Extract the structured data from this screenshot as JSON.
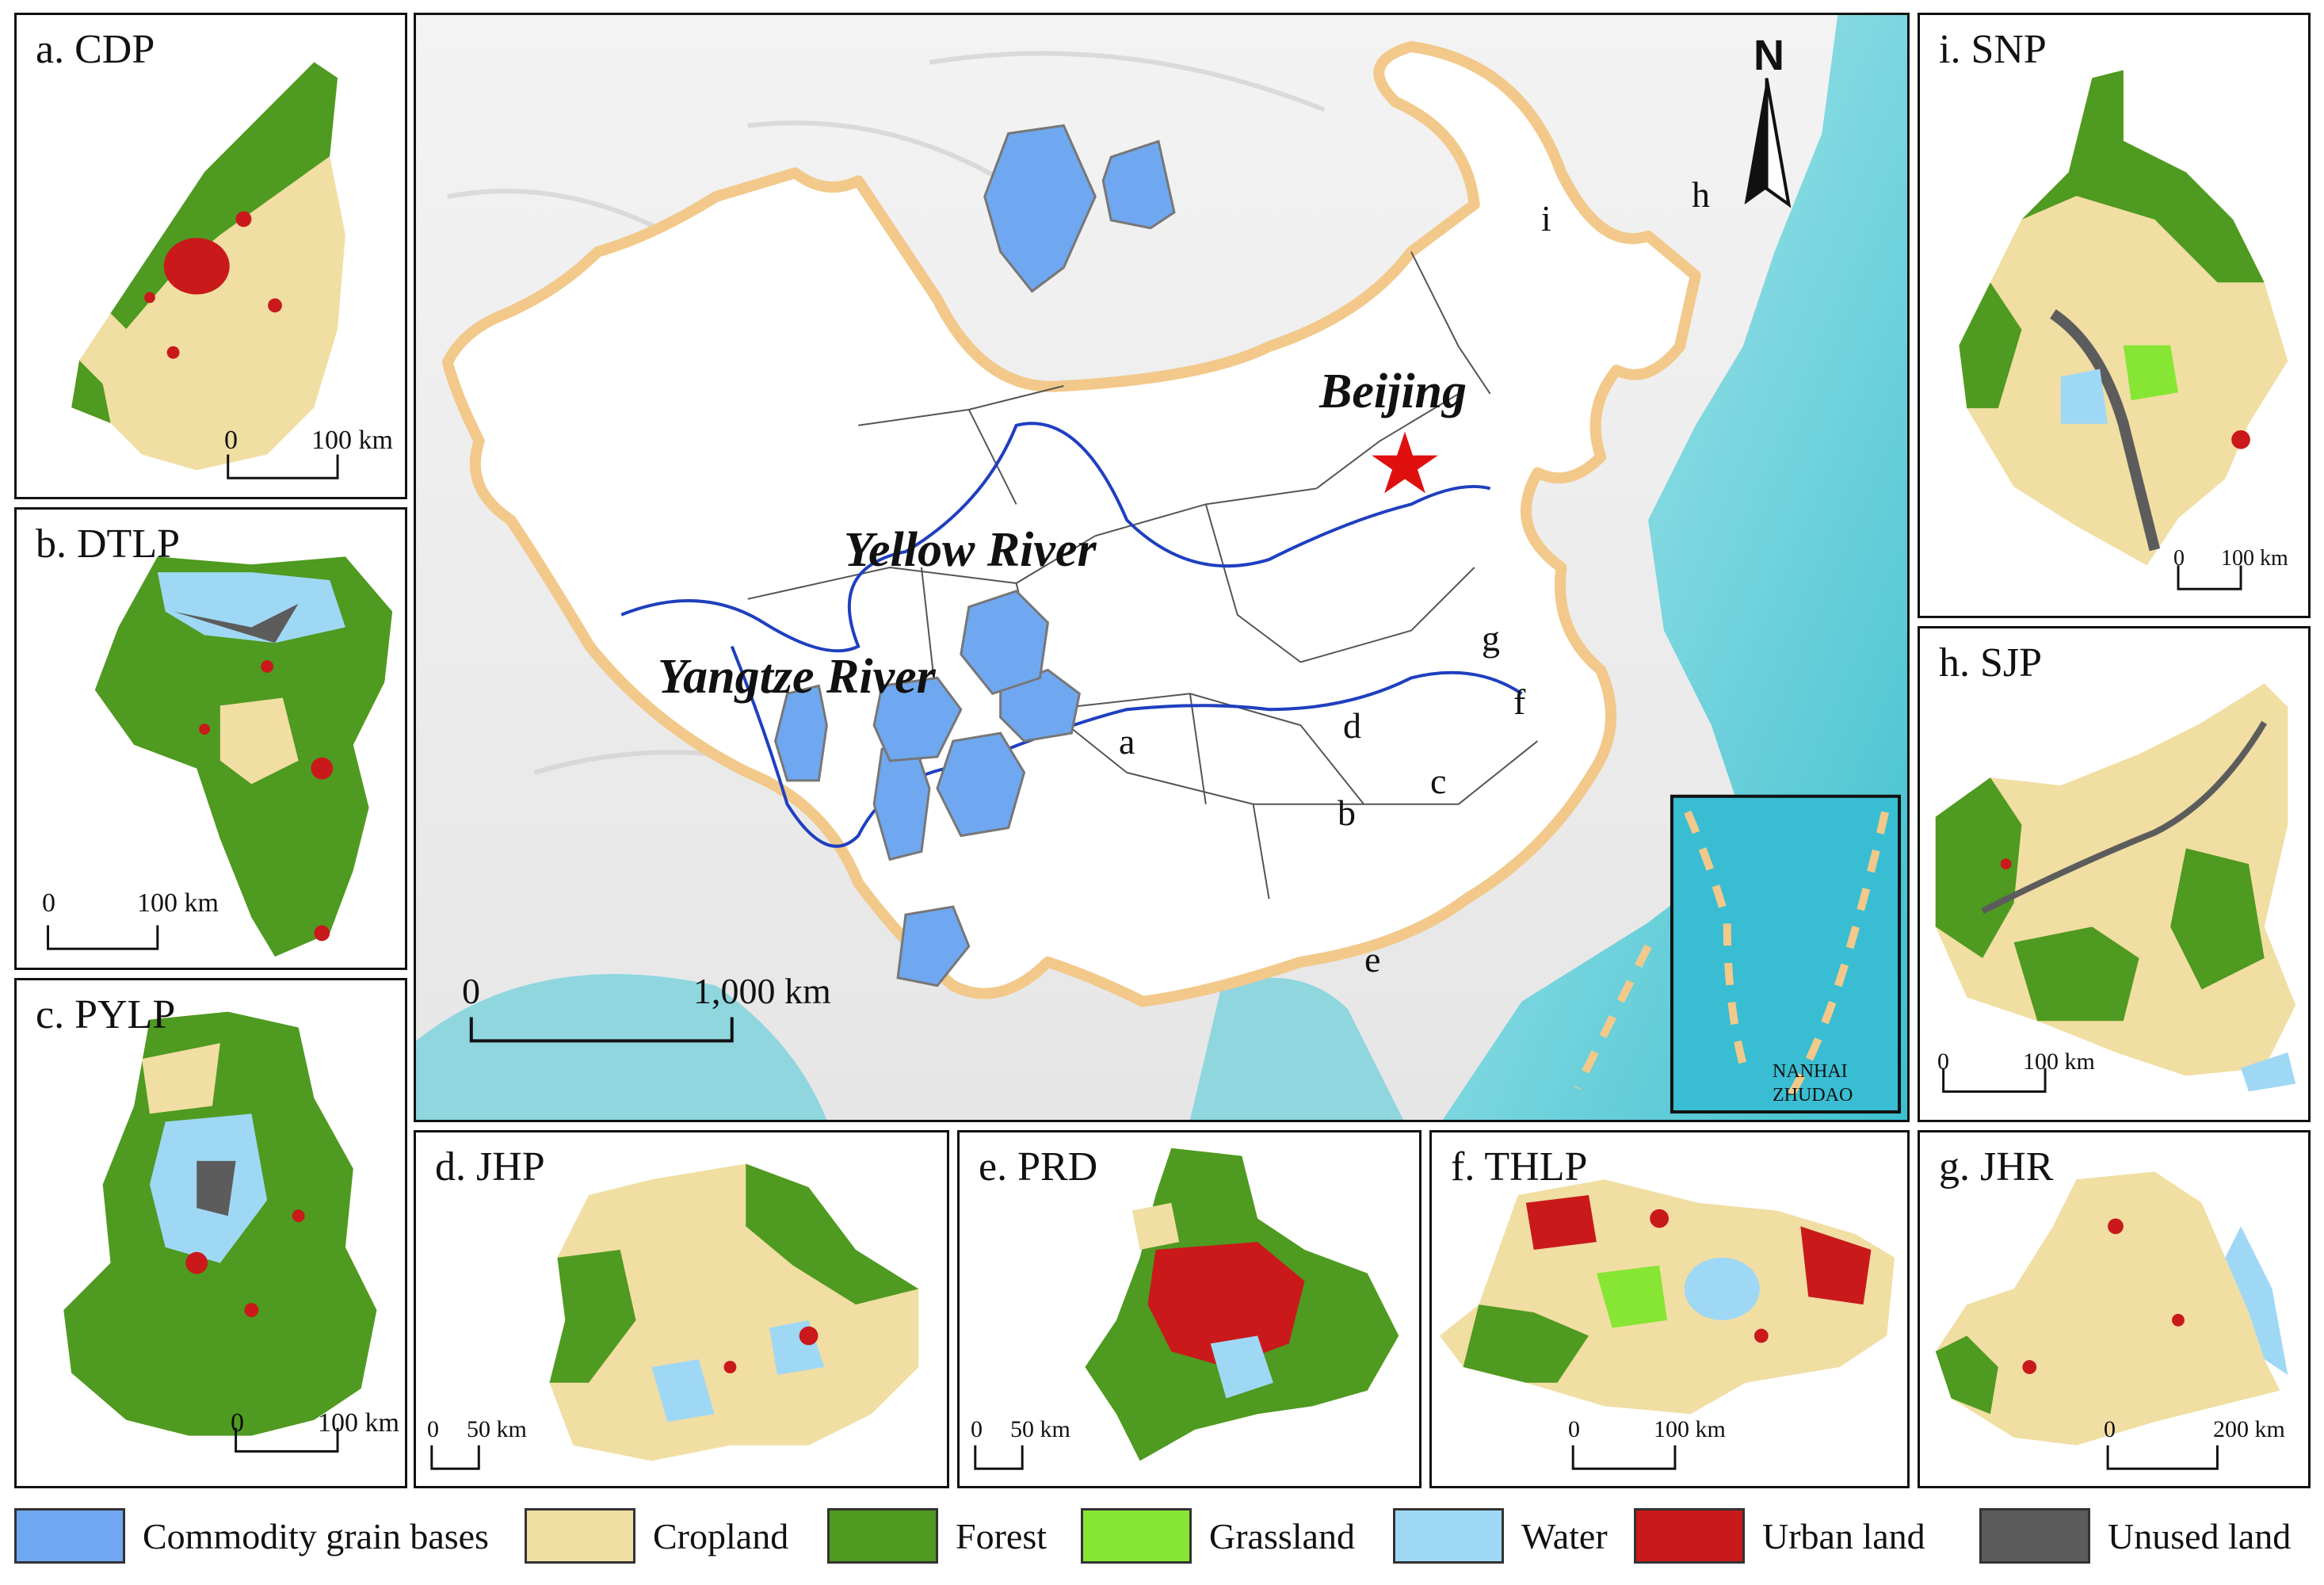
{
  "main_map": {
    "places": {
      "capital": "Beijing",
      "river_yellow": "Yellow River",
      "river_yangtze": "Yangtze River"
    },
    "regions": [
      "a",
      "b",
      "c",
      "d",
      "e",
      "f",
      "g",
      "h",
      "i"
    ],
    "north": "N",
    "scale": {
      "zero": "0",
      "end": "1,000 km"
    },
    "inset": {
      "line1": "NANHAI",
      "line2": "ZHUDAO"
    }
  },
  "panels": {
    "a": {
      "title": "a. CDP",
      "scale_zero": "0",
      "scale_end": "100 km"
    },
    "b": {
      "title": "b. DTLP",
      "scale_zero": "0",
      "scale_end": "100 km"
    },
    "c": {
      "title": "c. PYLP",
      "scale_zero": "0",
      "scale_end": "100 km"
    },
    "d": {
      "title": "d. JHP",
      "scale_zero": "0",
      "scale_end": "50 km"
    },
    "e": {
      "title": "e. PRD",
      "scale_zero": "0",
      "scale_end": "50 km"
    },
    "f": {
      "title": "f. THLP",
      "scale_zero": "0",
      "scale_end": "100 km"
    },
    "g": {
      "title": "g. JHR",
      "scale_zero": "0",
      "scale_end": "200 km"
    },
    "h": {
      "title": "h. SJP",
      "scale_zero": "0",
      "scale_end": "100 km"
    },
    "i": {
      "title": "i. SNP",
      "scale_zero": "0",
      "scale_end": "100 km"
    }
  },
  "legend": [
    {
      "label": "Commodity grain bases",
      "color": "#6fa8f0"
    },
    {
      "label": "Cropland",
      "color": "#f1dea3"
    },
    {
      "label": "Forest",
      "color": "#4f9a20"
    },
    {
      "label": "Grassland",
      "color": "#86e633"
    },
    {
      "label": "Water",
      "color": "#9fd8f5"
    },
    {
      "label": "Urban land",
      "color": "#c9191b"
    },
    {
      "label": "Unused land",
      "color": "#5c5c5c"
    }
  ],
  "colors": {
    "commodity": "#6fa8f0",
    "cropland": "#f1dea3",
    "forest": "#4f9a20",
    "grassland": "#86e633",
    "water": "#9fd8f5",
    "urban": "#c9191b",
    "unused": "#5c5c5c",
    "sea": "#4cc3cc",
    "border": "#f2c98a",
    "river": "#1f3fbf",
    "capital_star": "#e01010"
  }
}
